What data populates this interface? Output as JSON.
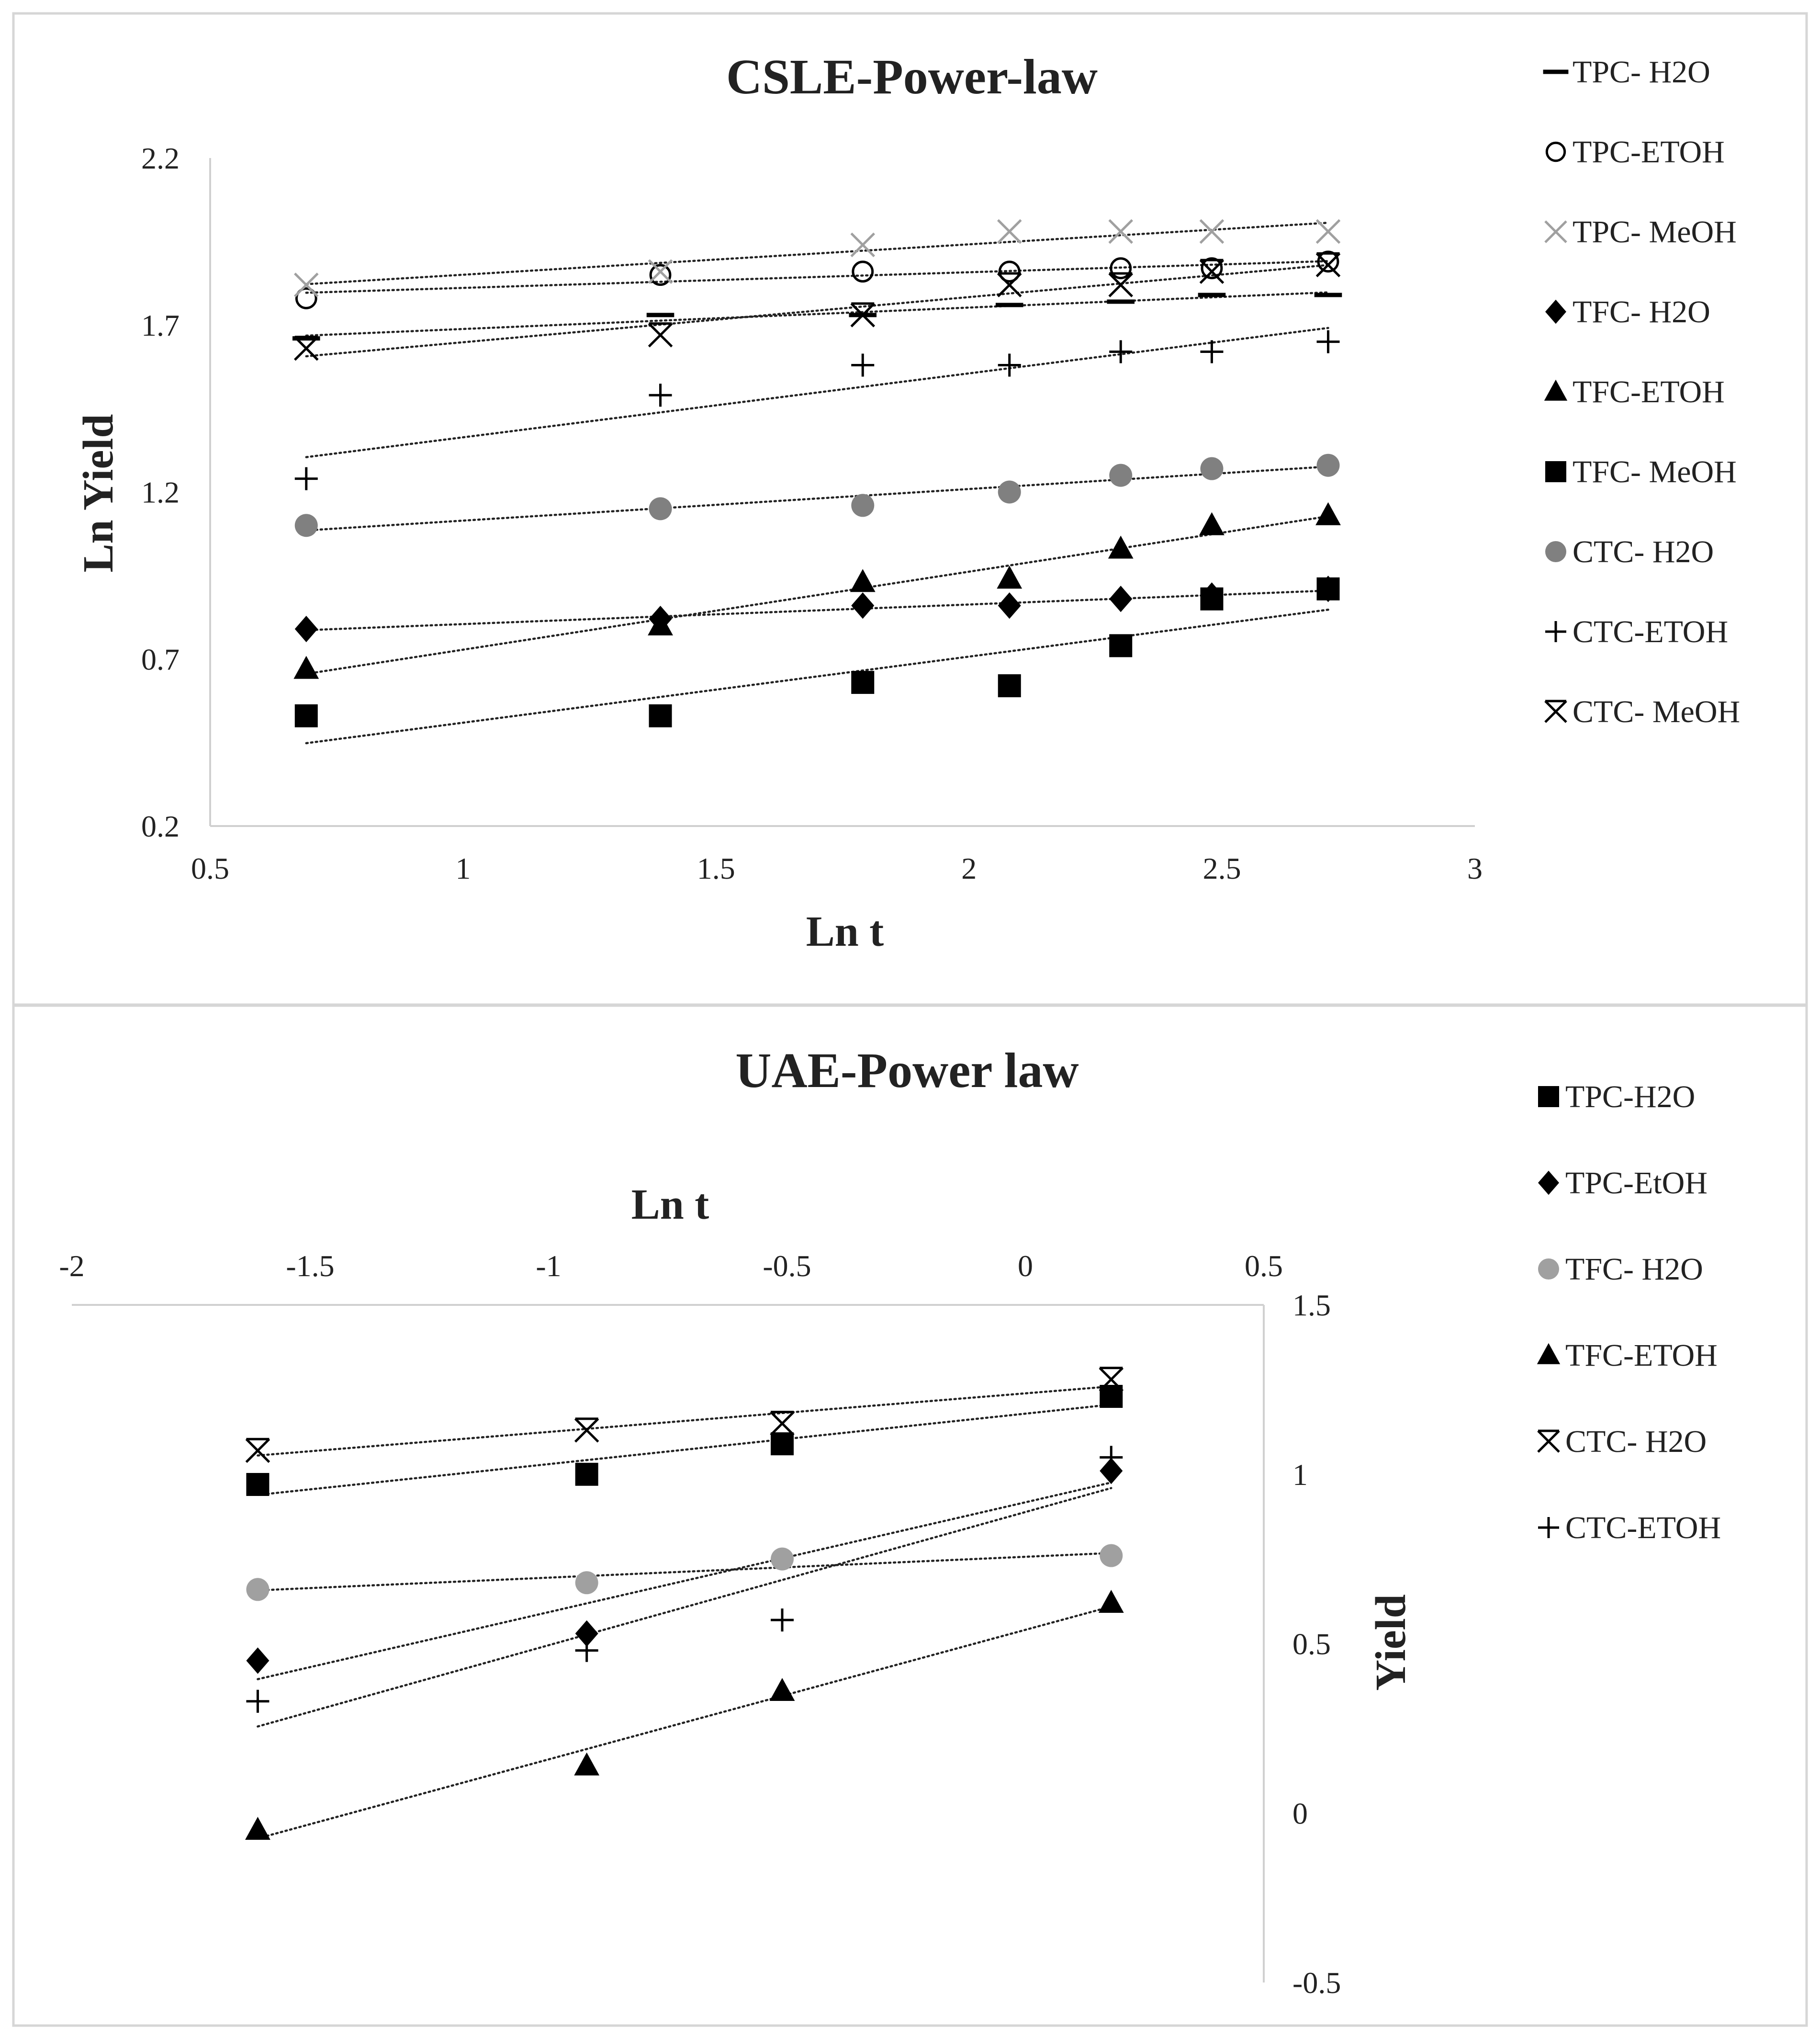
{
  "chart_data": [
    {
      "type": "scatter",
      "title": "CSLE-Power-law",
      "xlabel": "Ln t",
      "ylabel": "Ln Yield",
      "xlim": [
        0.5,
        3
      ],
      "ylim": [
        0.2,
        2.2
      ],
      "x_ticks": [
        "0.5",
        "1",
        "1.5",
        "2",
        "2.5",
        "3"
      ],
      "x_tick_values": [
        0.5,
        1,
        1.5,
        2,
        2.5,
        3
      ],
      "y_ticks": [
        "0.2",
        "0.7",
        "1.2",
        "1.7",
        "2.2"
      ],
      "y_tick_values": [
        0.2,
        0.7,
        1.2,
        1.7,
        2.2
      ],
      "x": [
        0.69,
        1.39,
        1.79,
        2.08,
        2.3,
        2.48,
        2.71
      ],
      "series": [
        {
          "name": "TPC- H2O",
          "marker": "dash",
          "color": "#000000",
          "values": [
            1.66,
            1.73,
            1.73,
            1.76,
            1.77,
            1.79,
            1.79
          ]
        },
        {
          "name": "TPC-ETOH",
          "marker": "circle-open",
          "color": "#000000",
          "values": [
            1.78,
            1.85,
            1.86,
            1.86,
            1.87,
            1.87,
            1.89
          ]
        },
        {
          "name": "TPC- MeOH",
          "marker": "x",
          "color": "#a0a0a0",
          "values": [
            1.82,
            1.86,
            1.94,
            1.98,
            1.98,
            1.98,
            1.98
          ]
        },
        {
          "name": "TFC- H2O",
          "marker": "diamond",
          "color": "#000000",
          "values": [
            0.79,
            0.82,
            0.86,
            0.86,
            0.88,
            0.89,
            0.91
          ]
        },
        {
          "name": "TFC-ETOH",
          "marker": "triangle",
          "color": "#000000",
          "values": [
            0.67,
            0.8,
            0.93,
            0.94,
            1.03,
            1.1,
            1.13
          ]
        },
        {
          "name": "TFC- MeOH",
          "marker": "square",
          "color": "#000000",
          "values": [
            0.53,
            0.53,
            0.63,
            0.62,
            0.74,
            0.88,
            0.91
          ]
        },
        {
          "name": "CTC- H2O",
          "marker": "circle",
          "color": "#808080",
          "values": [
            1.1,
            1.15,
            1.16,
            1.2,
            1.25,
            1.27,
            1.28
          ]
        },
        {
          "name": "CTC-ETOH",
          "marker": "plus",
          "color": "#000000",
          "values": [
            1.24,
            1.49,
            1.58,
            1.58,
            1.62,
            1.62,
            1.65
          ]
        },
        {
          "name": "CTC- MeOH",
          "marker": "star",
          "color": "#000000",
          "values": [
            1.63,
            1.67,
            1.73,
            1.82,
            1.82,
            1.86,
            1.88
          ]
        }
      ],
      "trendline": "power-law linear fit (dotted)",
      "legend": "right"
    },
    {
      "type": "scatter",
      "title": "UAE-Power law",
      "xlabel": "Ln t",
      "ylabel": "Yield",
      "xlim": [
        -2,
        0.5
      ],
      "ylim": [
        -0.5,
        1.5
      ],
      "x_ticks": [
        "-2",
        "-1.5",
        "-1",
        "-0.5",
        "0",
        "0.5"
      ],
      "x_tick_values": [
        -2,
        -1.5,
        -1,
        -0.5,
        0,
        0.5
      ],
      "y_ticks": [
        "1.5",
        "1",
        "0.5",
        "0",
        "-0.5"
      ],
      "y_tick_values": [
        1.5,
        1,
        0.5,
        0,
        -0.5
      ],
      "x": [
        -1.61,
        -0.92,
        -0.51,
        0.18
      ],
      "series": [
        {
          "name": "TPC-H2O",
          "marker": "square",
          "color": "#000000",
          "values": [
            0.97,
            1.0,
            1.09,
            1.23
          ]
        },
        {
          "name": "TPC-EtOH",
          "marker": "diamond",
          "color": "#000000",
          "values": [
            0.45,
            0.53,
            null,
            1.01
          ]
        },
        {
          "name": "TFC- H2O",
          "marker": "circle",
          "color": "#a0a0a0",
          "values": [
            0.66,
            0.68,
            0.75,
            0.76
          ]
        },
        {
          "name": "TFC-ETOH",
          "marker": "triangle",
          "color": "#000000",
          "values": [
            -0.05,
            0.14,
            0.36,
            0.62
          ]
        },
        {
          "name": "CTC- H2O",
          "marker": "star",
          "color": "#000000",
          "values": [
            1.07,
            1.13,
            1.15,
            1.28
          ]
        },
        {
          "name": "CTC-ETOH",
          "marker": "plus",
          "color": "#000000",
          "values": [
            0.33,
            0.48,
            0.57,
            1.05
          ]
        }
      ],
      "trendline": "linear fit (dotted)",
      "legend": "right"
    }
  ]
}
